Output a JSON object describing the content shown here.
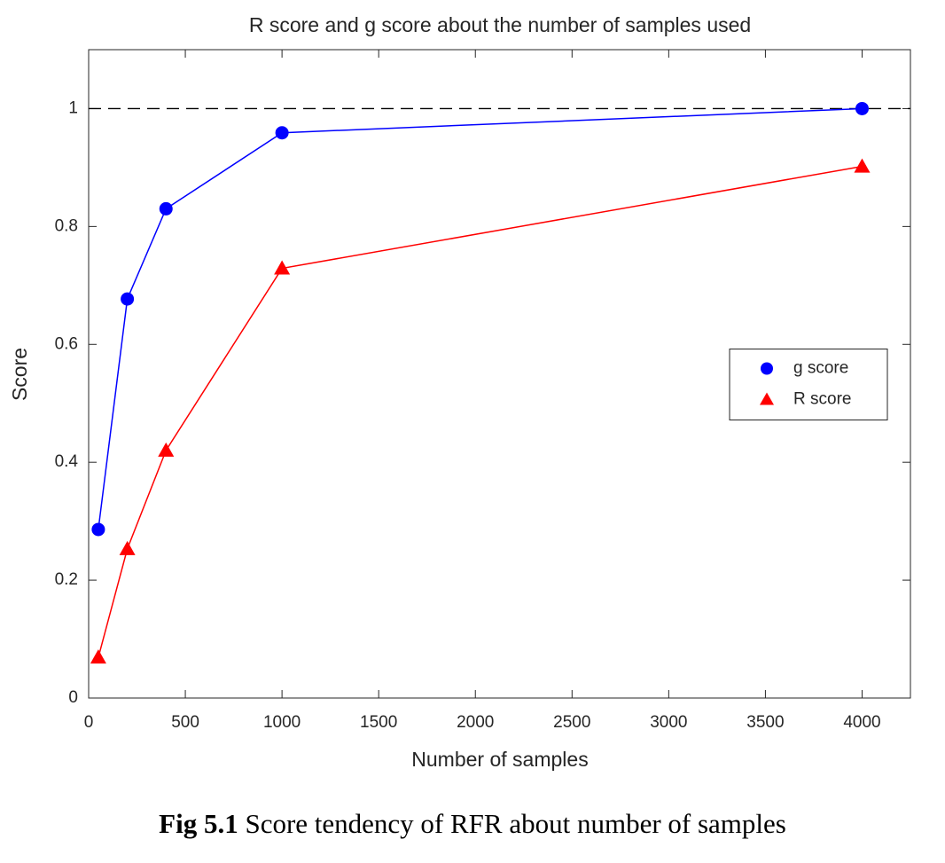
{
  "chart_data": {
    "type": "line",
    "title": "R score and g score about the number of samples used",
    "xlabel": "Number of samples",
    "ylabel": "Score",
    "xlim": [
      0,
      4250
    ],
    "xticks": [
      0,
      500,
      1000,
      1500,
      2000,
      2500,
      3000,
      3500,
      4000
    ],
    "ylim": [
      0,
      1.1
    ],
    "yticks": [
      0,
      0.2,
      0.4,
      0.6,
      0.8,
      1
    ],
    "reference_line": 1,
    "legend": "center right",
    "series": [
      {
        "name": "g score",
        "color": "#0000ff",
        "marker": "circle",
        "x": [
          50,
          200,
          400,
          1000,
          4000
        ],
        "values": [
          0.286,
          0.677,
          0.83,
          0.959,
          1.0
        ]
      },
      {
        "name": "R score",
        "color": "#ff0000",
        "marker": "triangle",
        "x": [
          50,
          200,
          400,
          1000,
          4000
        ],
        "values": [
          0.069,
          0.253,
          0.42,
          0.729,
          0.902
        ]
      }
    ]
  },
  "caption": {
    "label": "Fig 5.1",
    "text": "Score tendency of RFR about number of samples"
  }
}
